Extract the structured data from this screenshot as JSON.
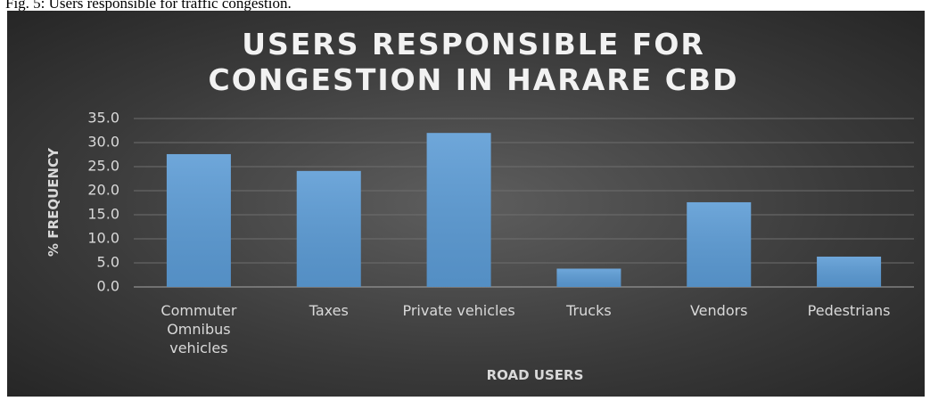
{
  "caption": "Fig. 5: Users responsible for traffic congestion.",
  "chart_data": {
    "type": "bar",
    "title": "USERS RESPONSIBLE FOR CONGESTION IN HARARE CBD",
    "x_label": "ROAD USERS",
    "y_label": "% FREQUENCY",
    "categories": [
      "Commuter Omnibus vehicles",
      "Taxes",
      "Private vehicles",
      "Trucks",
      "Vendors",
      "Pedestrians"
    ],
    "values": [
      27.6,
      24.1,
      32.0,
      3.8,
      17.6,
      6.3
    ],
    "color": "#5b9bd5",
    "ylim": [
      0,
      35
    ],
    "yticks": [
      {
        "value": 0,
        "label": "0.0"
      },
      {
        "value": 5,
        "label": "5.0"
      },
      {
        "value": 10,
        "label": "10.0"
      },
      {
        "value": 15,
        "label": "15.0"
      },
      {
        "value": 20,
        "label": "20.0"
      },
      {
        "value": 25,
        "label": "25.0"
      },
      {
        "value": 30,
        "label": "30.0"
      },
      {
        "value": 35,
        "label": "35.0"
      }
    ],
    "grid": true
  }
}
